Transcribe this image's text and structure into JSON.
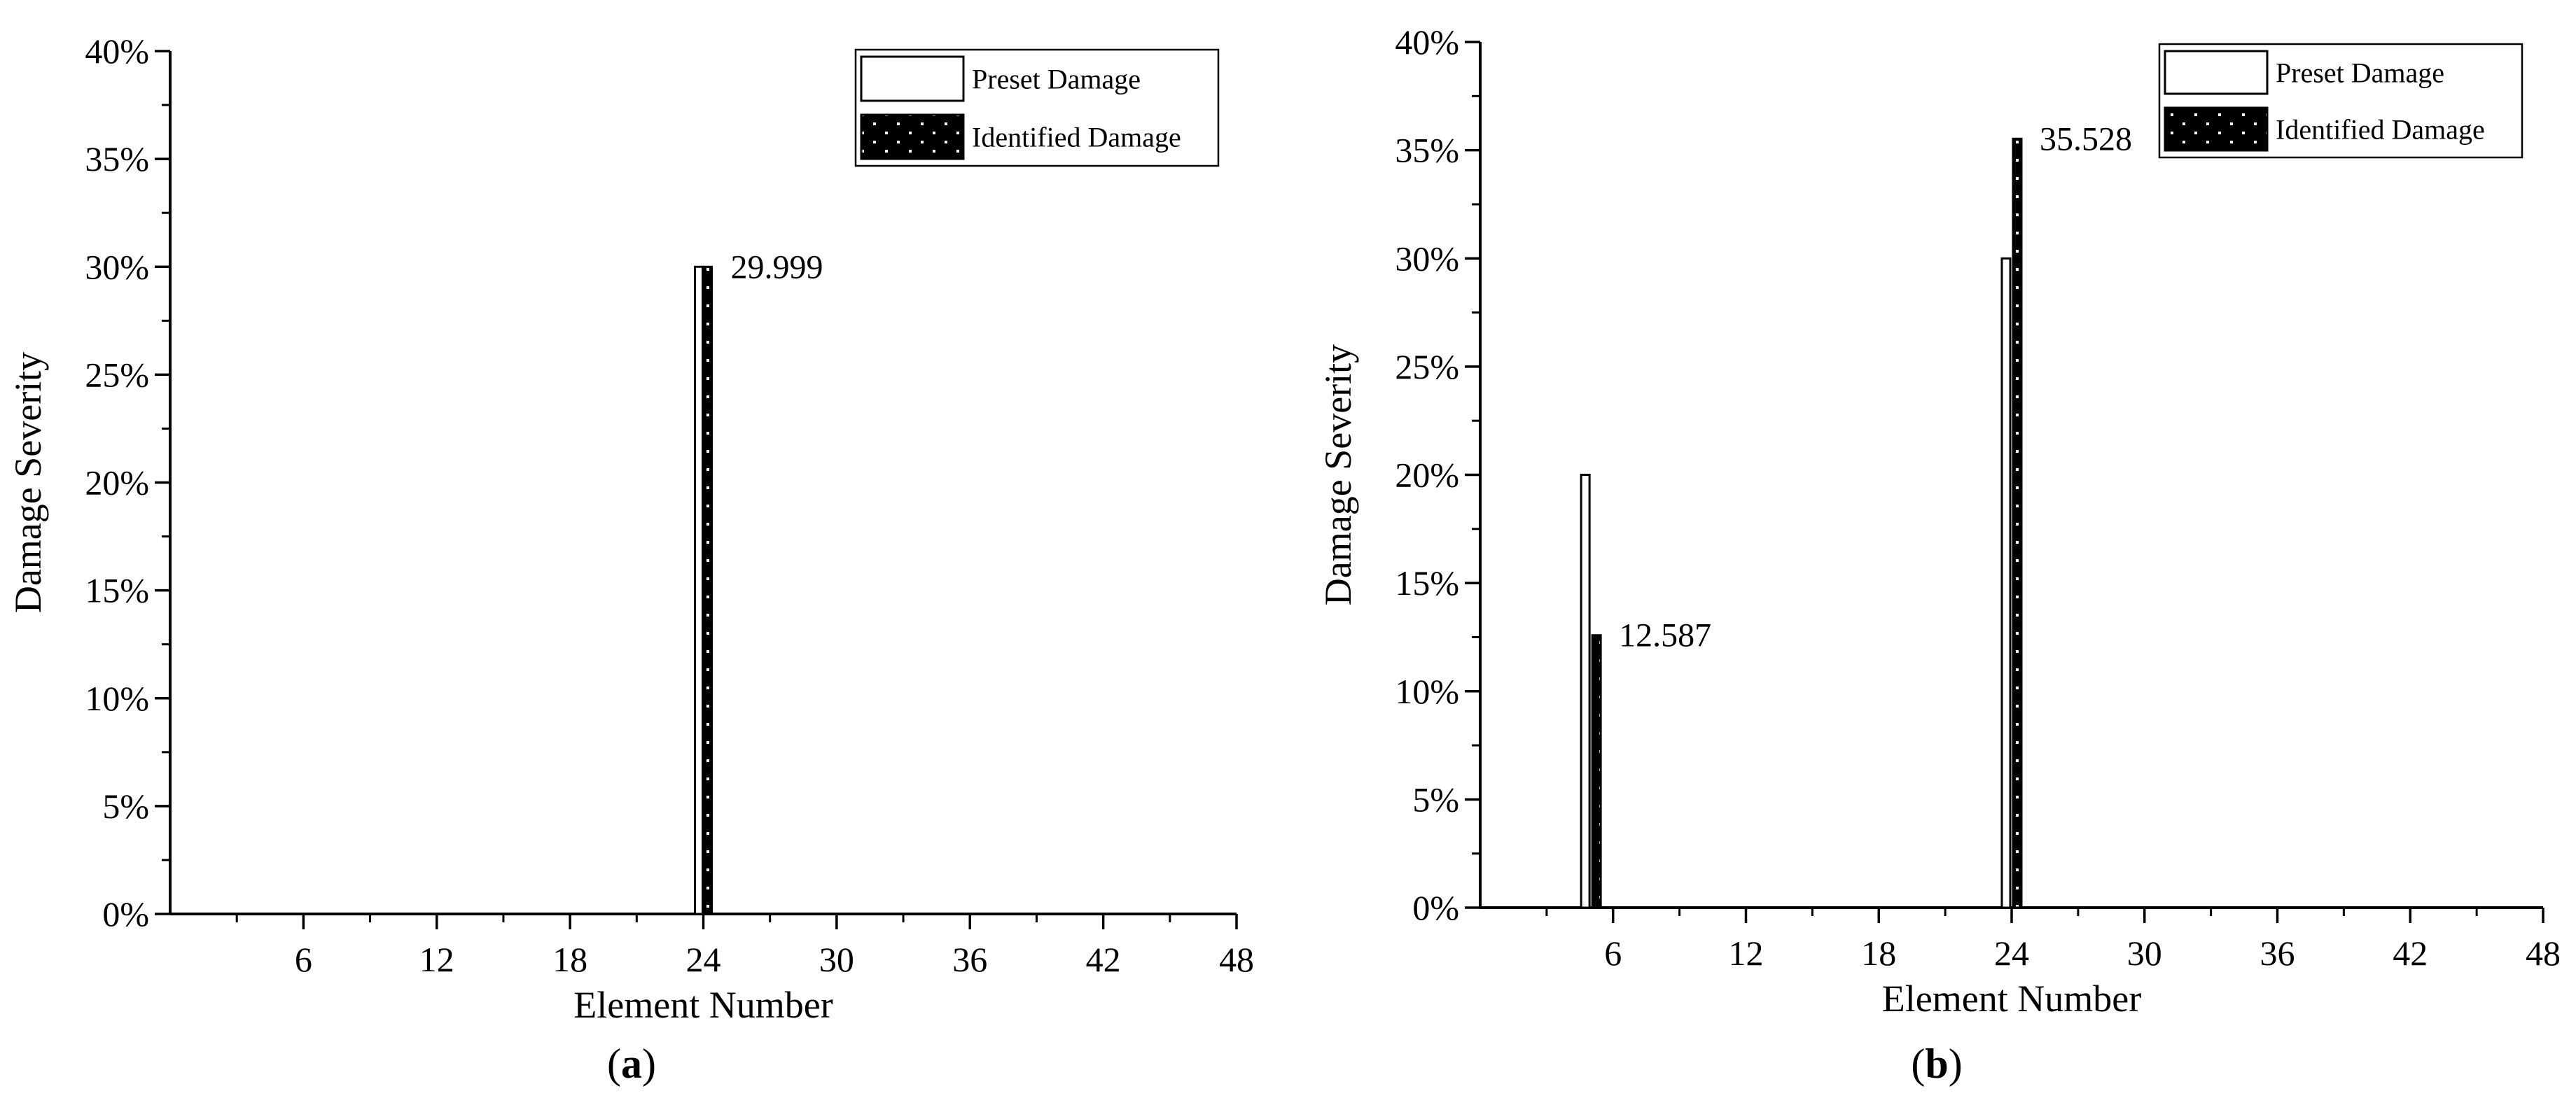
{
  "chart_data": [
    {
      "type": "bar",
      "panel_label": "a",
      "xlabel": "Element Number",
      "ylabel": "Damage Severity",
      "xlim": [
        0,
        48
      ],
      "ylim": [
        0,
        40
      ],
      "x_ticks": [
        6,
        12,
        18,
        24,
        30,
        36,
        42,
        48
      ],
      "y_ticks": [
        0,
        5,
        10,
        15,
        20,
        25,
        30,
        35,
        40
      ],
      "y_tick_labels": [
        "0%",
        "5%",
        "10%",
        "15%",
        "20%",
        "25%",
        "30%",
        "35%",
        "40%"
      ],
      "legend_position": "top-right",
      "series": [
        {
          "name": "Preset Damage",
          "color": "#ffffff",
          "pattern": "none",
          "points": [
            {
              "x": 24,
              "y": 30
            }
          ]
        },
        {
          "name": "Identified Damage",
          "color": "#000000",
          "pattern": "dots",
          "points": [
            {
              "x": 24,
              "y": 29.999
            }
          ]
        }
      ],
      "annotations": [
        {
          "text": "29.999",
          "x": 24,
          "y": 29.999
        }
      ]
    },
    {
      "type": "bar",
      "panel_label": "b",
      "xlabel": "Element Number",
      "ylabel": "Damage Severity",
      "xlim": [
        0,
        48
      ],
      "ylim": [
        0,
        40
      ],
      "x_ticks": [
        6,
        12,
        18,
        24,
        30,
        36,
        42,
        48
      ],
      "y_ticks": [
        0,
        5,
        10,
        15,
        20,
        25,
        30,
        35,
        40
      ],
      "y_tick_labels": [
        "0%",
        "5%",
        "10%",
        "15%",
        "20%",
        "25%",
        "30%",
        "35%",
        "40%"
      ],
      "legend_position": "top-right",
      "series": [
        {
          "name": "Preset Damage",
          "color": "#ffffff",
          "pattern": "none",
          "points": [
            {
              "x": 5,
              "y": 20
            },
            {
              "x": 24,
              "y": 30
            }
          ]
        },
        {
          "name": "Identified Damage",
          "color": "#000000",
          "pattern": "dots",
          "points": [
            {
              "x": 5,
              "y": 12.587
            },
            {
              "x": 24,
              "y": 35.528
            }
          ]
        }
      ],
      "annotations": [
        {
          "text": "12.587",
          "x": 5,
          "y": 12.587
        },
        {
          "text": "35.528",
          "x": 24,
          "y": 35.528
        }
      ]
    }
  ]
}
